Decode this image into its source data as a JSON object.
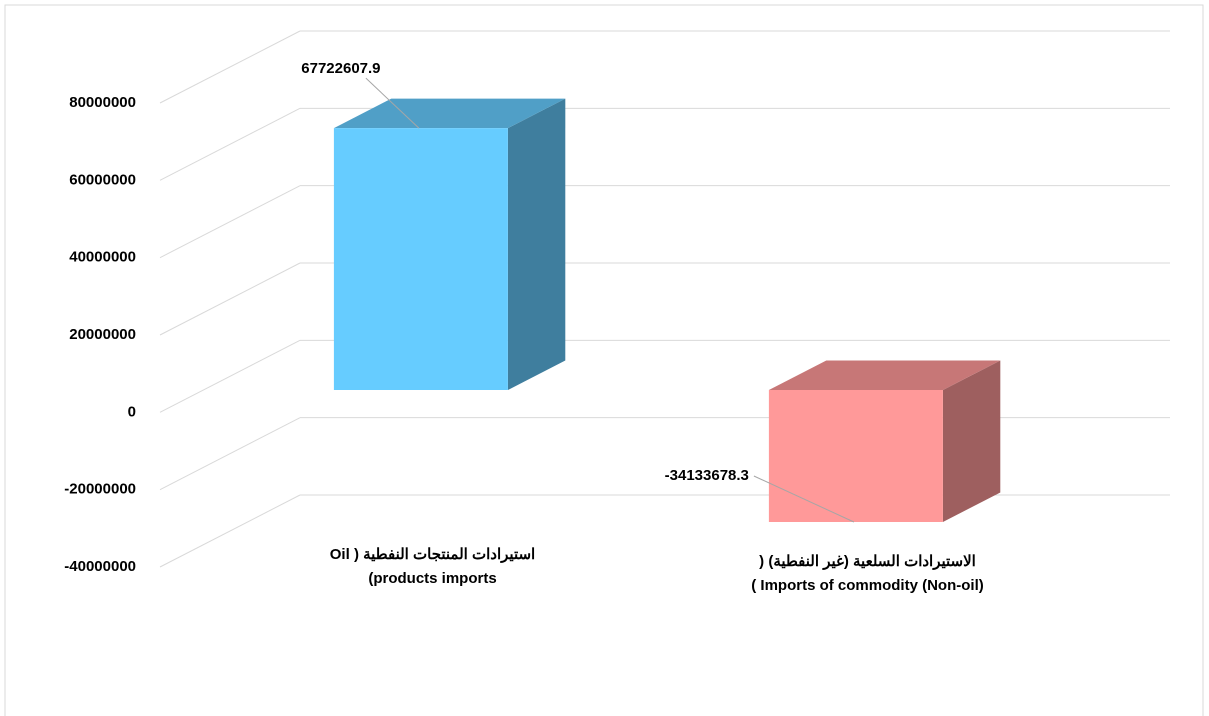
{
  "chart_data": {
    "type": "bar3d",
    "categories": [
      "استيرادات المنتجات النفطية ( Oil products imports)",
      "الاستيرادات السلعية (غير النفطية) ( Imports of commodity (Non-oil) )"
    ],
    "values": [
      67722607.9,
      -34133678.3
    ],
    "colors": [
      "#66ccff",
      "#ff9999"
    ],
    "ylim": [
      -40000000,
      80000000
    ],
    "yticks": [
      -40000000,
      -20000000,
      0,
      20000000,
      40000000,
      60000000,
      80000000
    ],
    "grid": true
  }
}
